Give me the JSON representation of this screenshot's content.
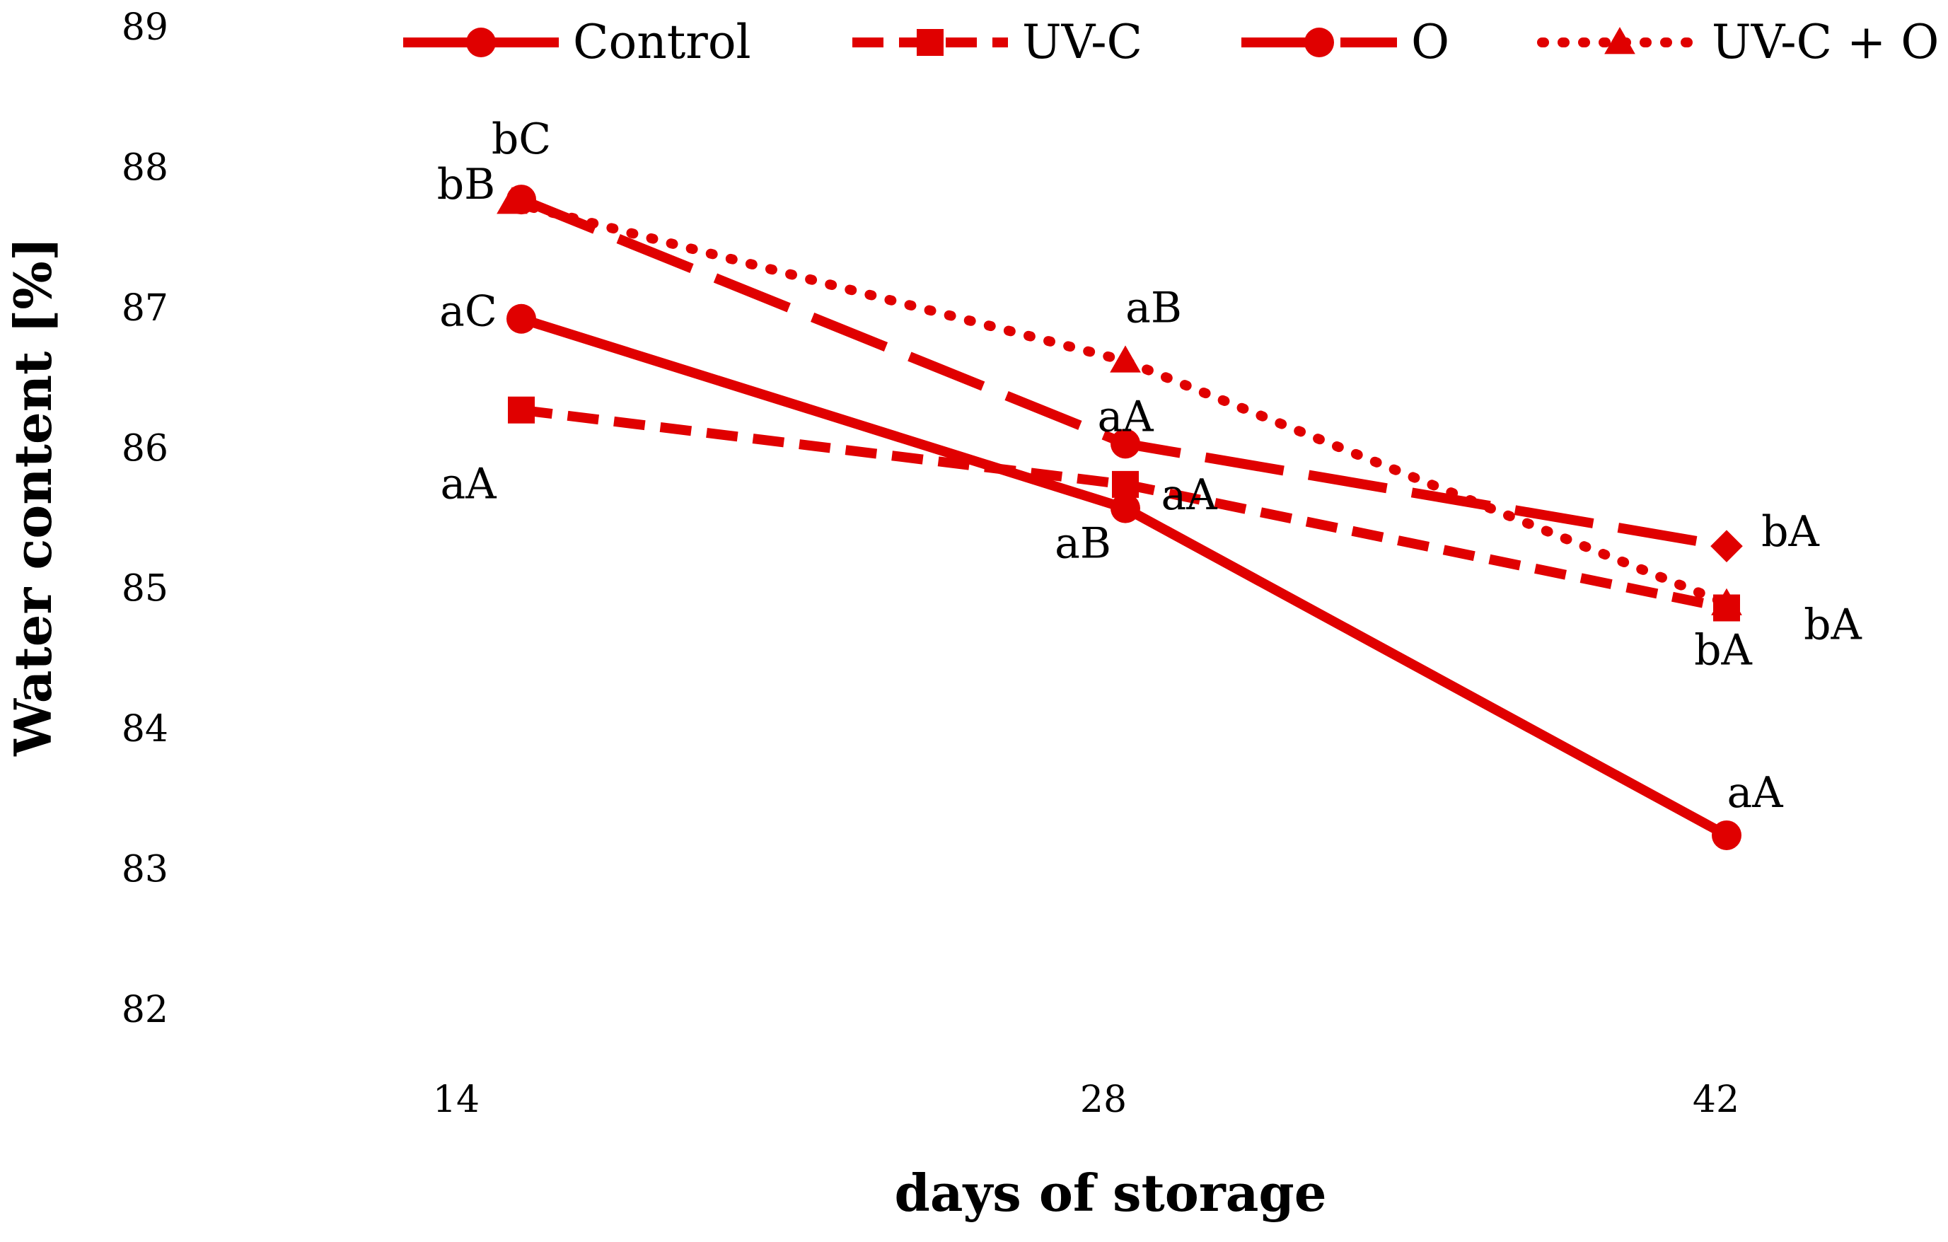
{
  "chart_data": {
    "type": "line",
    "xlabel": "days of storage",
    "ylabel": "Water content [%]",
    "x": [
      14,
      28,
      42
    ],
    "ylim": [
      82,
      89
    ],
    "yticks": [
      82,
      83,
      84,
      85,
      86,
      87,
      88,
      89
    ],
    "grid": false,
    "legend": "top",
    "color": "#e00000",
    "series": [
      {
        "name": "Control",
        "style": "solid",
        "marker": "circle",
        "values": [
          86.92,
          85.57,
          83.24
        ],
        "labels": [
          "aC",
          "aB",
          "aA"
        ]
      },
      {
        "name": "UV-C",
        "style": "dashed",
        "marker": "square",
        "values": [
          86.27,
          85.74,
          84.86
        ],
        "labels": [
          "aA",
          "aA",
          "bA"
        ]
      },
      {
        "name": "O",
        "style": "longdash",
        "marker": "circle",
        "values": [
          87.77,
          86.03,
          85.3
        ],
        "labels": [
          "bC",
          "aA",
          "bA"
        ]
      },
      {
        "name": "UV-C + O",
        "style": "dotted",
        "marker": "triangle",
        "values": [
          87.75,
          86.62,
          84.89
        ],
        "labels": [
          "bB",
          "aB",
          "bA"
        ]
      }
    ]
  }
}
